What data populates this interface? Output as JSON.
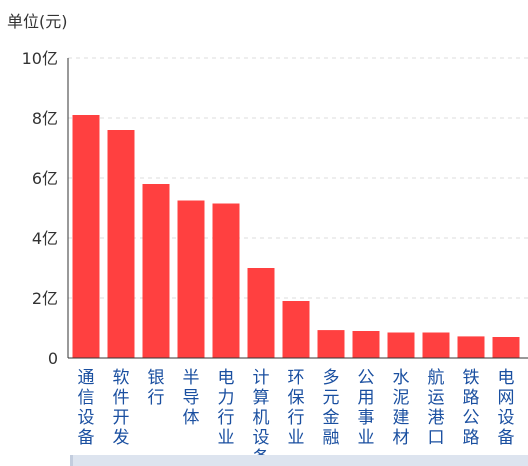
{
  "chart_data": {
    "type": "bar",
    "unit_label": "单位(元)",
    "categories": [
      "通信设备",
      "软件开发",
      "银行",
      "半导体",
      "电力行业",
      "计算机设备",
      "环保行业",
      "多元金融",
      "公用事业",
      "水泥建材",
      "航运港口",
      "铁路公路",
      "电网设备"
    ],
    "values": [
      8.1,
      7.6,
      5.8,
      5.25,
      5.15,
      3.0,
      1.9,
      0.93,
      0.9,
      0.85,
      0.85,
      0.72,
      0.7
    ],
    "ylim": [
      0,
      10
    ],
    "yticks": [
      0,
      2,
      4,
      6,
      8,
      10
    ],
    "ytick_labels": [
      "0",
      "2亿",
      "4亿",
      "6亿",
      "8亿",
      "10亿"
    ],
    "grid": true,
    "bar_color": "#ff4040",
    "category_label_color": "#1a4fa0",
    "gridline_color": "#dddddd"
  }
}
